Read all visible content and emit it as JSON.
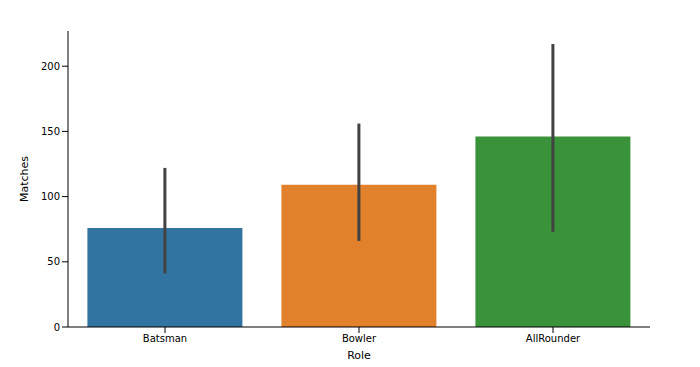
{
  "chart_data": {
    "type": "bar",
    "x_label": "Role",
    "y_label": "Matches",
    "categories": [
      "Batsman",
      "Bowler",
      "AllRounder"
    ],
    "values": [
      76,
      109,
      146
    ],
    "error_low": [
      41,
      66,
      73
    ],
    "error_high": [
      122,
      156,
      217
    ],
    "colors": [
      "#3274a1",
      "#e1812c",
      "#3a923a"
    ],
    "ylim": [
      0,
      227
    ],
    "yticks": [
      0,
      50,
      100,
      150,
      200
    ],
    "grid": false
  }
}
